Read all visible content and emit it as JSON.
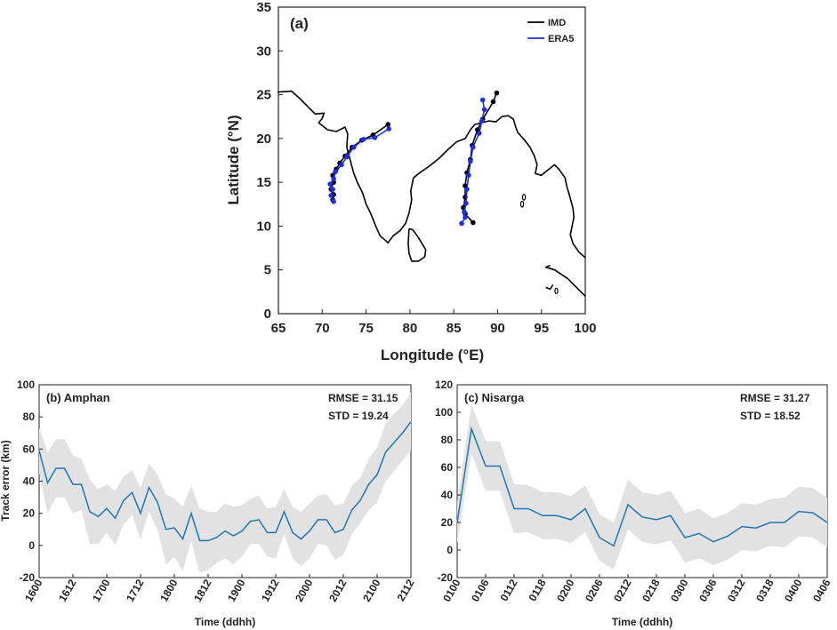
{
  "chart_data": [
    {
      "type": "map-track",
      "panel_label": "(a)",
      "xlabel": "Longitude (°E)",
      "ylabel": "Latitude (°N)",
      "xlim": [
        65,
        100
      ],
      "ylim": [
        0,
        35
      ],
      "xticks": [
        65,
        70,
        75,
        80,
        85,
        90,
        95,
        100
      ],
      "yticks": [
        0,
        5,
        10,
        15,
        20,
        25,
        30,
        35
      ],
      "legend": [
        {
          "name": "IMD",
          "color": "#000000"
        },
        {
          "name": "ERA5",
          "color": "#1f2fe0"
        }
      ],
      "tracks": [
        {
          "name": "Nisarga",
          "imd": [
            [
              71.2,
              13.0
            ],
            [
              71.3,
              13.6
            ],
            [
              71.0,
              14.2
            ],
            [
              71.3,
              15.0
            ],
            [
              71.2,
              15.8
            ],
            [
              71.6,
              16.5
            ],
            [
              72.0,
              17.2
            ],
            [
              72.6,
              18.0
            ],
            [
              73.4,
              19.0
            ],
            [
              74.5,
              19.8
            ],
            [
              75.8,
              20.4
            ],
            [
              77.5,
              21.6
            ]
          ],
          "era5": [
            [
              71.3,
              12.8
            ],
            [
              71.0,
              13.5
            ],
            [
              71.2,
              14.2
            ],
            [
              70.9,
              14.8
            ],
            [
              71.3,
              15.4
            ],
            [
              71.5,
              16.2
            ],
            [
              72.2,
              17.0
            ],
            [
              72.8,
              17.9
            ],
            [
              73.6,
              19.0
            ],
            [
              74.7,
              19.9
            ],
            [
              76.0,
              20.1
            ],
            [
              77.6,
              21.1
            ]
          ]
        },
        {
          "name": "Amphan",
          "imd": [
            [
              87.2,
              10.4
            ],
            [
              86.3,
              11.4
            ],
            [
              86.1,
              12.1
            ],
            [
              86.3,
              13.3
            ],
            [
              86.3,
              14.6
            ],
            [
              86.5,
              16.1
            ],
            [
              86.9,
              17.6
            ],
            [
              87.1,
              19.2
            ],
            [
              87.7,
              21.0
            ],
            [
              88.3,
              22.2
            ],
            [
              89.5,
              24.2
            ],
            [
              89.9,
              25.2
            ]
          ],
          "era5": [
            [
              85.9,
              10.3
            ],
            [
              86.3,
              11.0
            ],
            [
              86.2,
              11.6
            ],
            [
              86.4,
              12.6
            ],
            [
              86.5,
              14.2
            ],
            [
              86.7,
              15.8
            ],
            [
              86.9,
              17.4
            ],
            [
              87.2,
              19.0
            ],
            [
              87.9,
              20.6
            ],
            [
              88.2,
              22.0
            ],
            [
              88.5,
              23.3
            ],
            [
              88.3,
              24.4
            ]
          ]
        }
      ]
    },
    {
      "type": "line",
      "panel_label": "(b) Amphan",
      "rmse_text": "RMSE = 31.15",
      "std_text": "STD = 19.24",
      "xlabel": "Time (ddhh)",
      "ylabel": "Track error (km)",
      "ylim": [
        -20,
        100
      ],
      "yticks": [
        -20,
        0,
        20,
        40,
        60,
        80,
        100
      ],
      "xtick_labels": [
        "1600",
        "1612",
        "1700",
        "1712",
        "1800",
        "1812",
        "1900",
        "1912",
        "2000",
        "2012",
        "2100",
        "2112"
      ],
      "line_color": "#1f77b4",
      "band_color": "#e2e2e2",
      "values": [
        59,
        39,
        48,
        48,
        38,
        38,
        21,
        18,
        23,
        17,
        28,
        33,
        20,
        36,
        27,
        10,
        11,
        4,
        20,
        3,
        3,
        5,
        9,
        6,
        9,
        15,
        16,
        8,
        8,
        21,
        8,
        4,
        9,
        16,
        16,
        8,
        10,
        22,
        28,
        38,
        44,
        58,
        64,
        70,
        77
      ],
      "band_half_width": [
        14,
        19,
        18,
        18,
        18,
        16,
        20,
        17,
        15,
        17,
        15,
        14,
        16,
        15,
        17,
        22,
        18,
        20,
        17,
        20,
        18,
        16,
        17,
        18,
        16,
        14,
        15,
        15,
        16,
        14,
        16,
        17,
        17,
        15,
        16,
        17,
        16,
        15,
        14,
        16,
        17,
        18,
        18,
        17,
        18
      ]
    },
    {
      "type": "line",
      "panel_label": "(c) Nisarga",
      "rmse_text": "RMSE = 31.27",
      "std_text": "STD = 18.52",
      "xlabel": "Time (ddhh)",
      "ylabel": "",
      "ylim": [
        -20,
        120
      ],
      "yticks": [
        -20,
        0,
        20,
        40,
        60,
        80,
        100,
        120
      ],
      "xtick_labels": [
        "0100",
        "0106",
        "0112",
        "0118",
        "0200",
        "0206",
        "0212",
        "0218",
        "0300",
        "0306",
        "0312",
        "0318",
        "0400",
        "0406"
      ],
      "line_color": "#1f77b4",
      "band_color": "#e2e2e2",
      "values": [
        20,
        88,
        61,
        61,
        30,
        30,
        25,
        25,
        22,
        30,
        9,
        3,
        33,
        24,
        22,
        25,
        9,
        12,
        6,
        10,
        17,
        16,
        20,
        20,
        28,
        27,
        20
      ],
      "band_half_width": [
        15,
        18,
        18,
        18,
        18,
        17,
        17,
        17,
        17,
        17,
        17,
        17,
        18,
        18,
        18,
        18,
        18,
        18,
        17,
        17,
        17,
        17,
        17,
        18,
        18,
        18,
        18
      ]
    }
  ]
}
